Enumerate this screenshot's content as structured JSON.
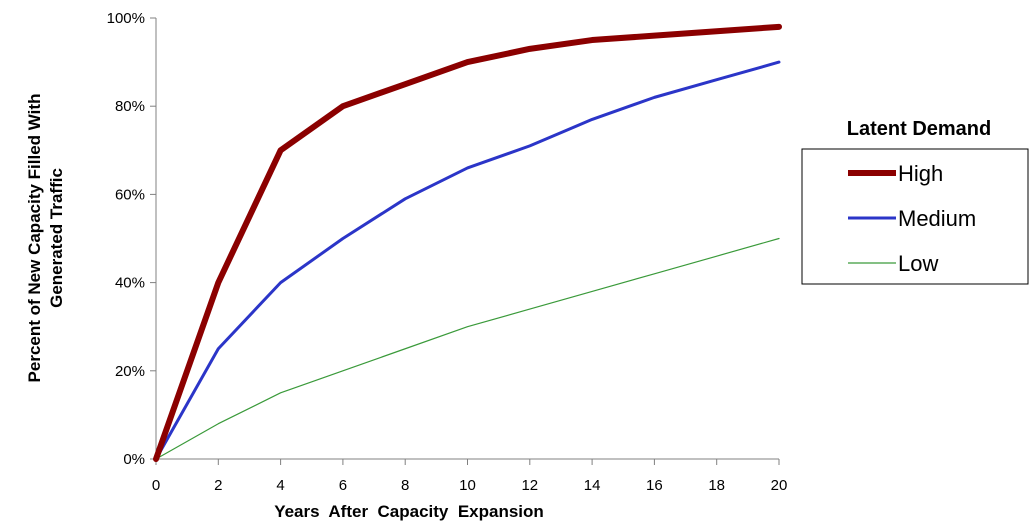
{
  "chart_data": {
    "type": "line",
    "title": "",
    "xlabel": "Years  After  Capacity  Expansion",
    "ylabel": [
      "Percent of New Capacity Filled With",
      "Generated Traffic"
    ],
    "x": [
      0,
      2,
      4,
      6,
      8,
      10,
      12,
      14,
      16,
      18,
      20
    ],
    "xlim": [
      0,
      20
    ],
    "ylim": [
      0,
      100
    ],
    "x_ticks": [
      "0",
      "2",
      "4",
      "6",
      "8",
      "10",
      "12",
      "14",
      "16",
      "18",
      "20"
    ],
    "y_ticks": [
      "0%",
      "20%",
      "40%",
      "60%",
      "80%",
      "100%"
    ],
    "grid": false,
    "legend": {
      "title": "Latent Demand",
      "position": "right"
    },
    "series": [
      {
        "name": "High",
        "color": "#8b0000",
        "values": [
          0,
          40,
          70,
          80,
          85,
          90,
          93,
          95,
          96,
          97,
          98
        ]
      },
      {
        "name": "Medium",
        "color": "#2b35c8",
        "values": [
          0,
          25,
          40,
          50,
          59,
          66,
          71,
          77,
          82,
          86,
          90
        ]
      },
      {
        "name": "Low",
        "color": "#3a9a3a",
        "values": [
          0,
          8,
          15,
          20,
          25,
          30,
          34,
          38,
          42,
          46,
          50
        ]
      }
    ]
  }
}
